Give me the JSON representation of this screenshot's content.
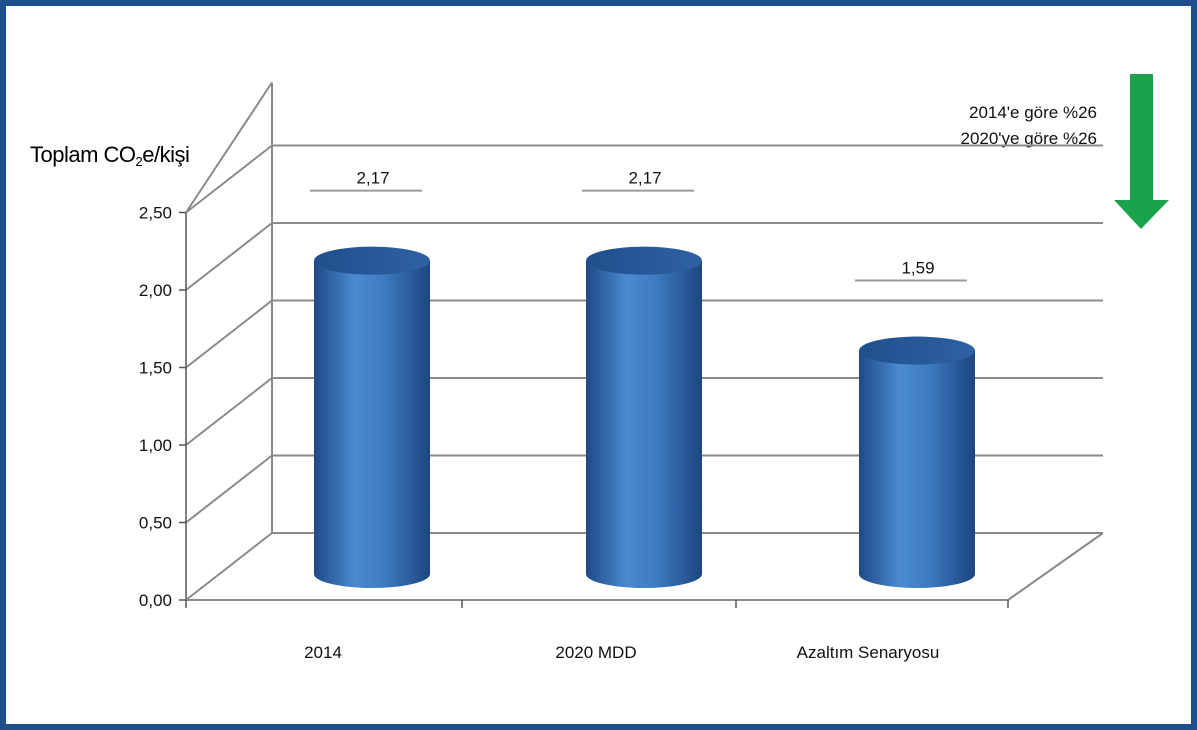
{
  "chart_data": {
    "type": "bar",
    "categories": [
      "2014",
      "2020 MDD",
      "Azaltım Senaryosu"
    ],
    "values": [
      2.17,
      2.17,
      1.59
    ],
    "value_labels": [
      "2,17",
      "2,17",
      "1,59"
    ],
    "ylabel_main": "Toplam CO",
    "ylabel_sub": "2",
    "ylabel_rest": "e/kişi",
    "ylim": [
      0,
      2.5
    ],
    "yticks": [
      0,
      0.5,
      1.0,
      1.5,
      2.0,
      2.5
    ],
    "ytick_labels": [
      "0,00",
      "0,50",
      "1,00",
      "1,50",
      "2,00",
      "2,50"
    ],
    "grid": true,
    "style": "3d-cylinder",
    "annotations": [
      "2014'e göre %26",
      "2020'ye göre %26"
    ],
    "colors": {
      "bar": "#3a78c0",
      "bar_dark": "#1f4f8c",
      "arrow": "#1aa34a",
      "frame": "#1f4e8c",
      "grid": "#888888"
    }
  }
}
